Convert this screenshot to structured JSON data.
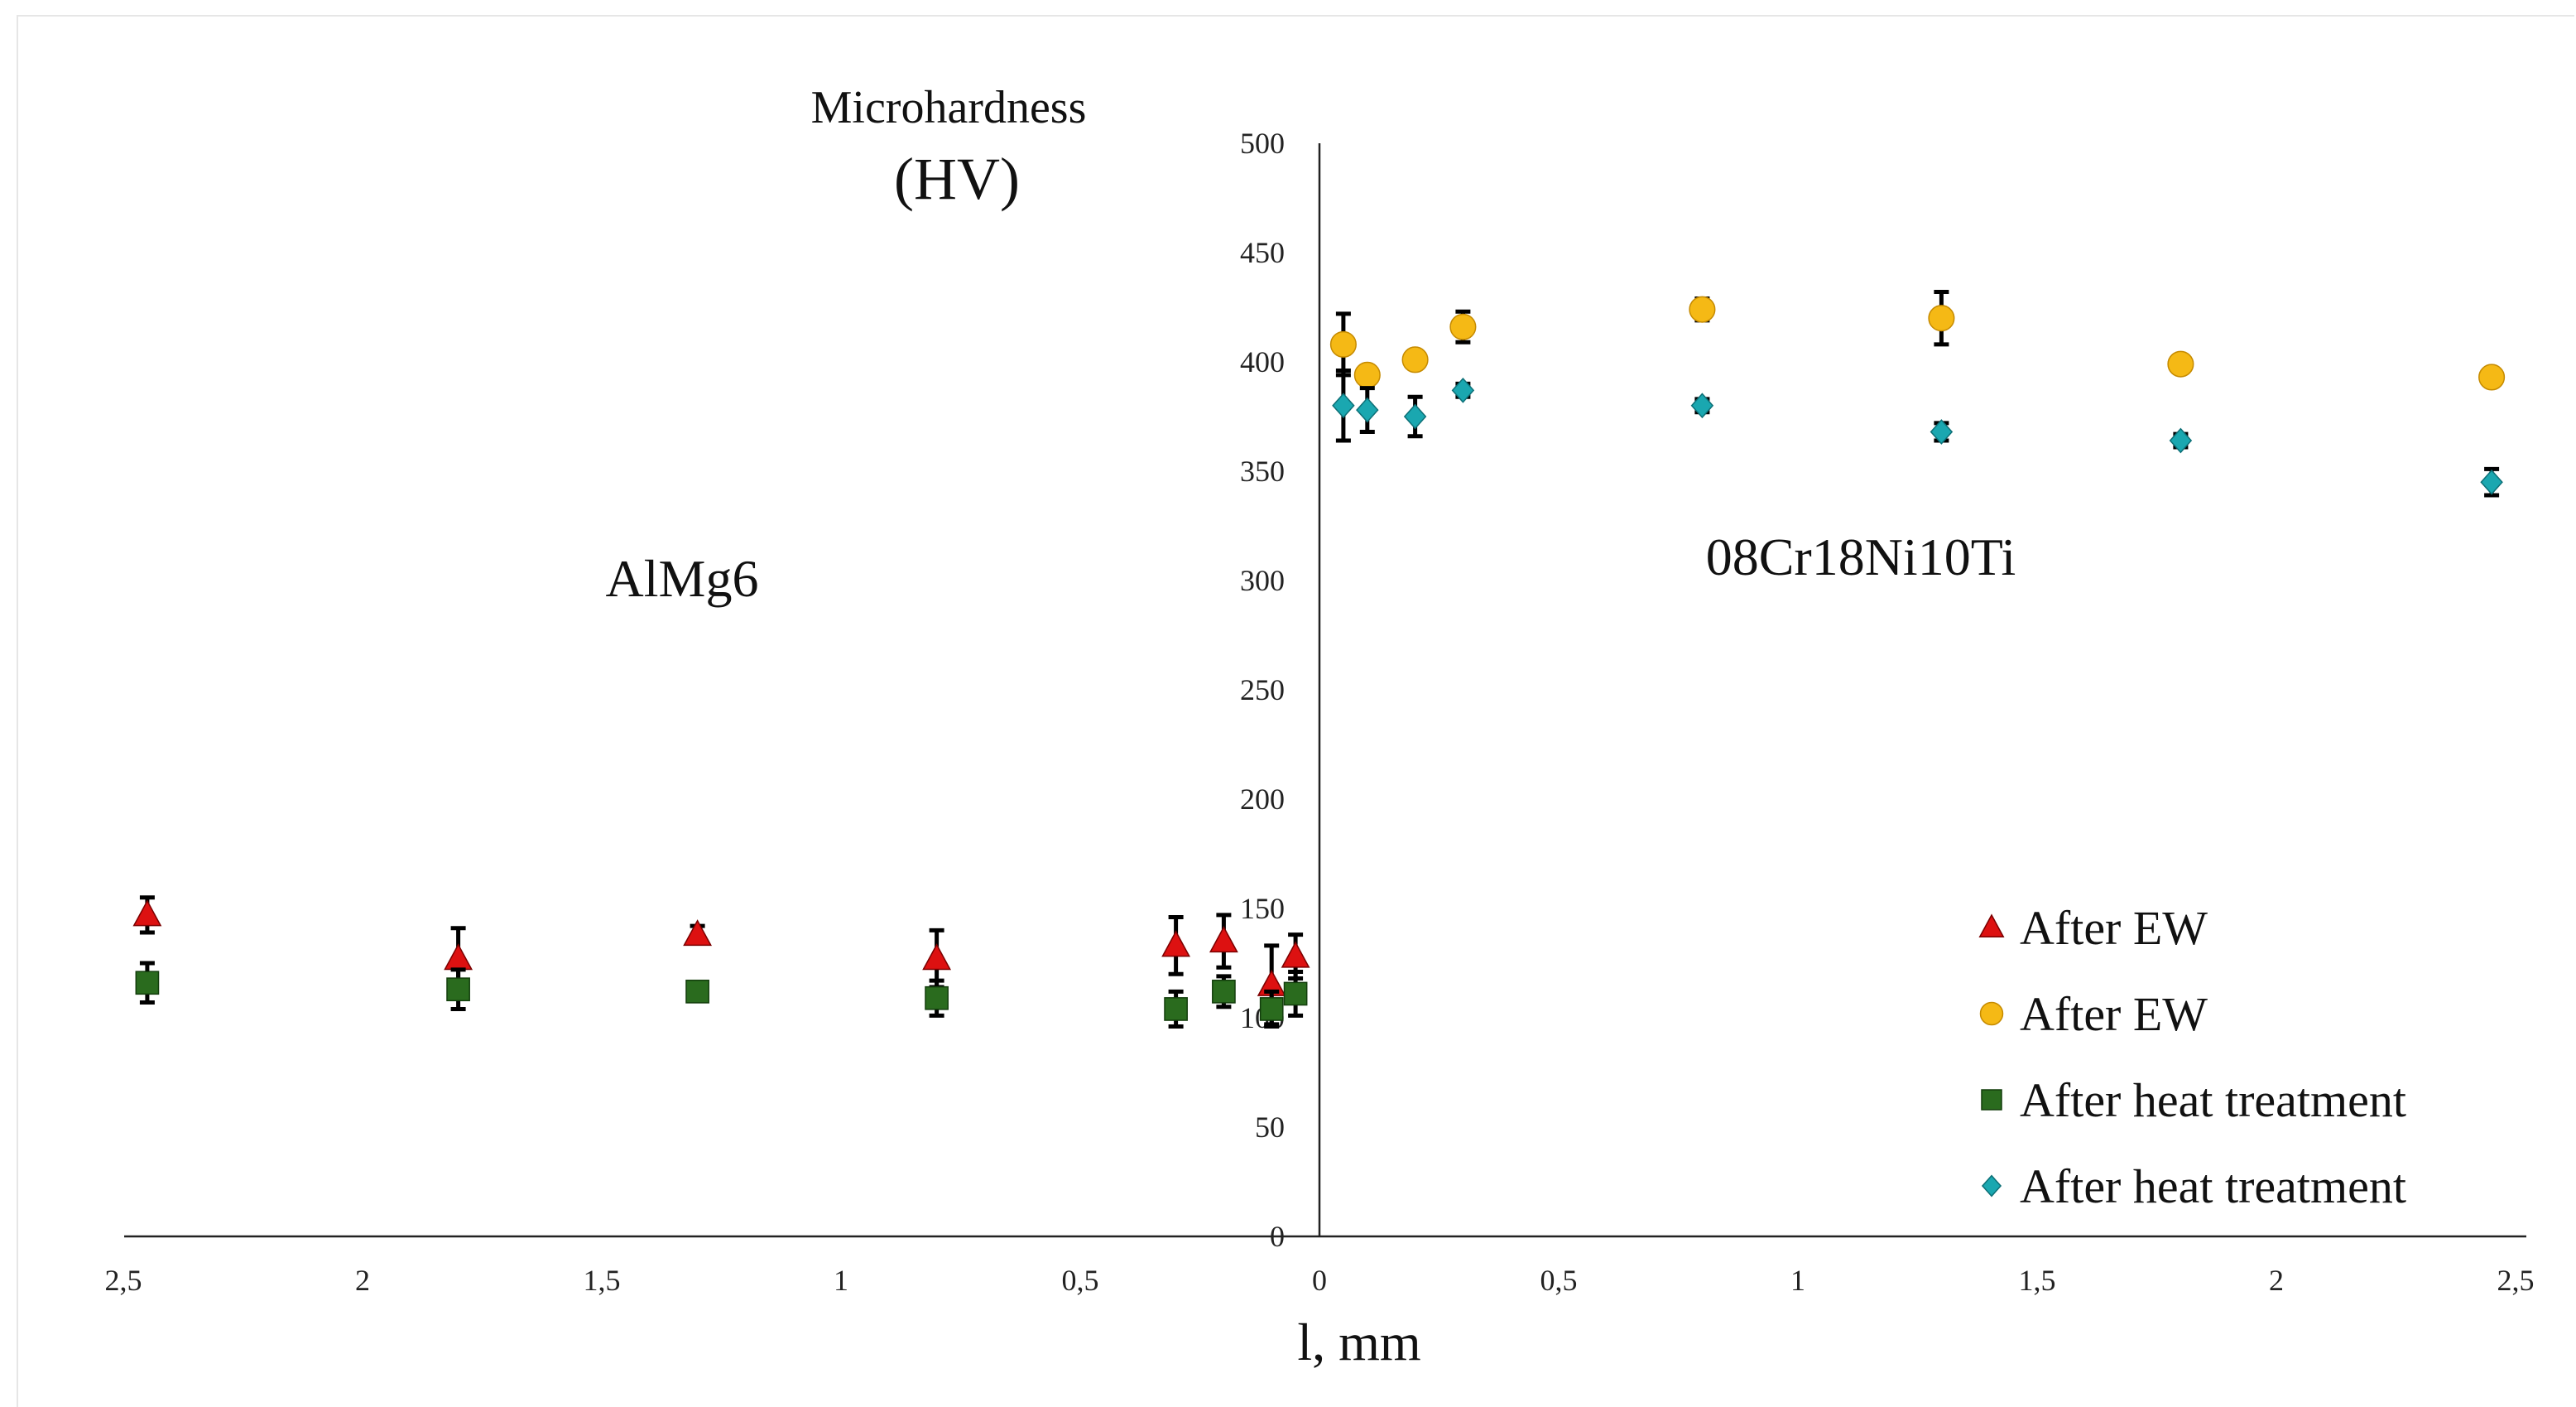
{
  "chart_data": {
    "type": "scatter",
    "y_title_line1": "Microhardness",
    "y_title_line2": "(HV)",
    "xlabel": "l, mm",
    "ylim": [
      0,
      500
    ],
    "y_ticks": [
      "0",
      "50",
      "100",
      "150",
      "200",
      "250",
      "300",
      "350",
      "400",
      "450",
      "500"
    ],
    "x_tick_labels": [
      "2,5",
      "2",
      "1,5",
      "1",
      "0,5",
      "0",
      "0,5",
      "1",
      "1,5",
      "2",
      "2,5"
    ],
    "region_left_label": "AlMg6",
    "region_right_label": "08Cr18Ni10Ti",
    "legend_position": "bottom-right",
    "series": [
      {
        "name": "After EW",
        "side": "AlMg6 (left)",
        "marker": "triangle",
        "color": "#dd1111",
        "points": [
          {
            "x": -2.45,
            "y": 147,
            "err": 8
          },
          {
            "x": -1.8,
            "y": 127,
            "err": 14
          },
          {
            "x": -1.3,
            "y": 138,
            "err": 4
          },
          {
            "x": -0.8,
            "y": 127,
            "err": 13
          },
          {
            "x": -0.3,
            "y": 133,
            "err": 13
          },
          {
            "x": -0.2,
            "y": 135,
            "err": 12
          },
          {
            "x": -0.1,
            "y": 115,
            "err": 18
          },
          {
            "x": -0.05,
            "y": 128,
            "err": 10
          }
        ]
      },
      {
        "name": "After EW",
        "side": "08Cr18Ni10Ti (right)",
        "marker": "circle",
        "color": "#f5b915",
        "points": [
          {
            "x": 0.05,
            "y": 408,
            "err": 14
          },
          {
            "x": 0.1,
            "y": 394,
            "err": 4
          },
          {
            "x": 0.2,
            "y": 401,
            "err": 3
          },
          {
            "x": 0.3,
            "y": 416,
            "err": 7
          },
          {
            "x": 0.8,
            "y": 424,
            "err": 5
          },
          {
            "x": 1.3,
            "y": 420,
            "err": 12
          },
          {
            "x": 1.8,
            "y": 399,
            "err": 3
          },
          {
            "x": 2.45,
            "y": 393,
            "err": 3
          }
        ]
      },
      {
        "name": "After heat treatment",
        "side": "AlMg6 (left)",
        "marker": "square",
        "color": "#2a6b1e",
        "points": [
          {
            "x": -2.45,
            "y": 116,
            "err": 9
          },
          {
            "x": -1.8,
            "y": 113,
            "err": 9
          },
          {
            "x": -1.3,
            "y": 112,
            "err": 4
          },
          {
            "x": -0.8,
            "y": 109,
            "err": 8
          },
          {
            "x": -0.3,
            "y": 104,
            "err": 8
          },
          {
            "x": -0.2,
            "y": 112,
            "err": 7
          },
          {
            "x": -0.1,
            "y": 104,
            "err": 8
          },
          {
            "x": -0.05,
            "y": 111,
            "err": 10
          }
        ]
      },
      {
        "name": "After heat treatment",
        "side": "08Cr18Ni10Ti (right)",
        "marker": "diamond",
        "color": "#1aa7b0",
        "points": [
          {
            "x": 0.05,
            "y": 380,
            "err": 16
          },
          {
            "x": 0.1,
            "y": 378,
            "err": 10
          },
          {
            "x": 0.2,
            "y": 375,
            "err": 9
          },
          {
            "x": 0.3,
            "y": 387,
            "err": 3
          },
          {
            "x": 0.8,
            "y": 380,
            "err": 3
          },
          {
            "x": 1.3,
            "y": 368,
            "err": 4
          },
          {
            "x": 1.8,
            "y": 364,
            "err": 3
          },
          {
            "x": 2.45,
            "y": 345,
            "err": 6
          }
        ]
      }
    ]
  }
}
